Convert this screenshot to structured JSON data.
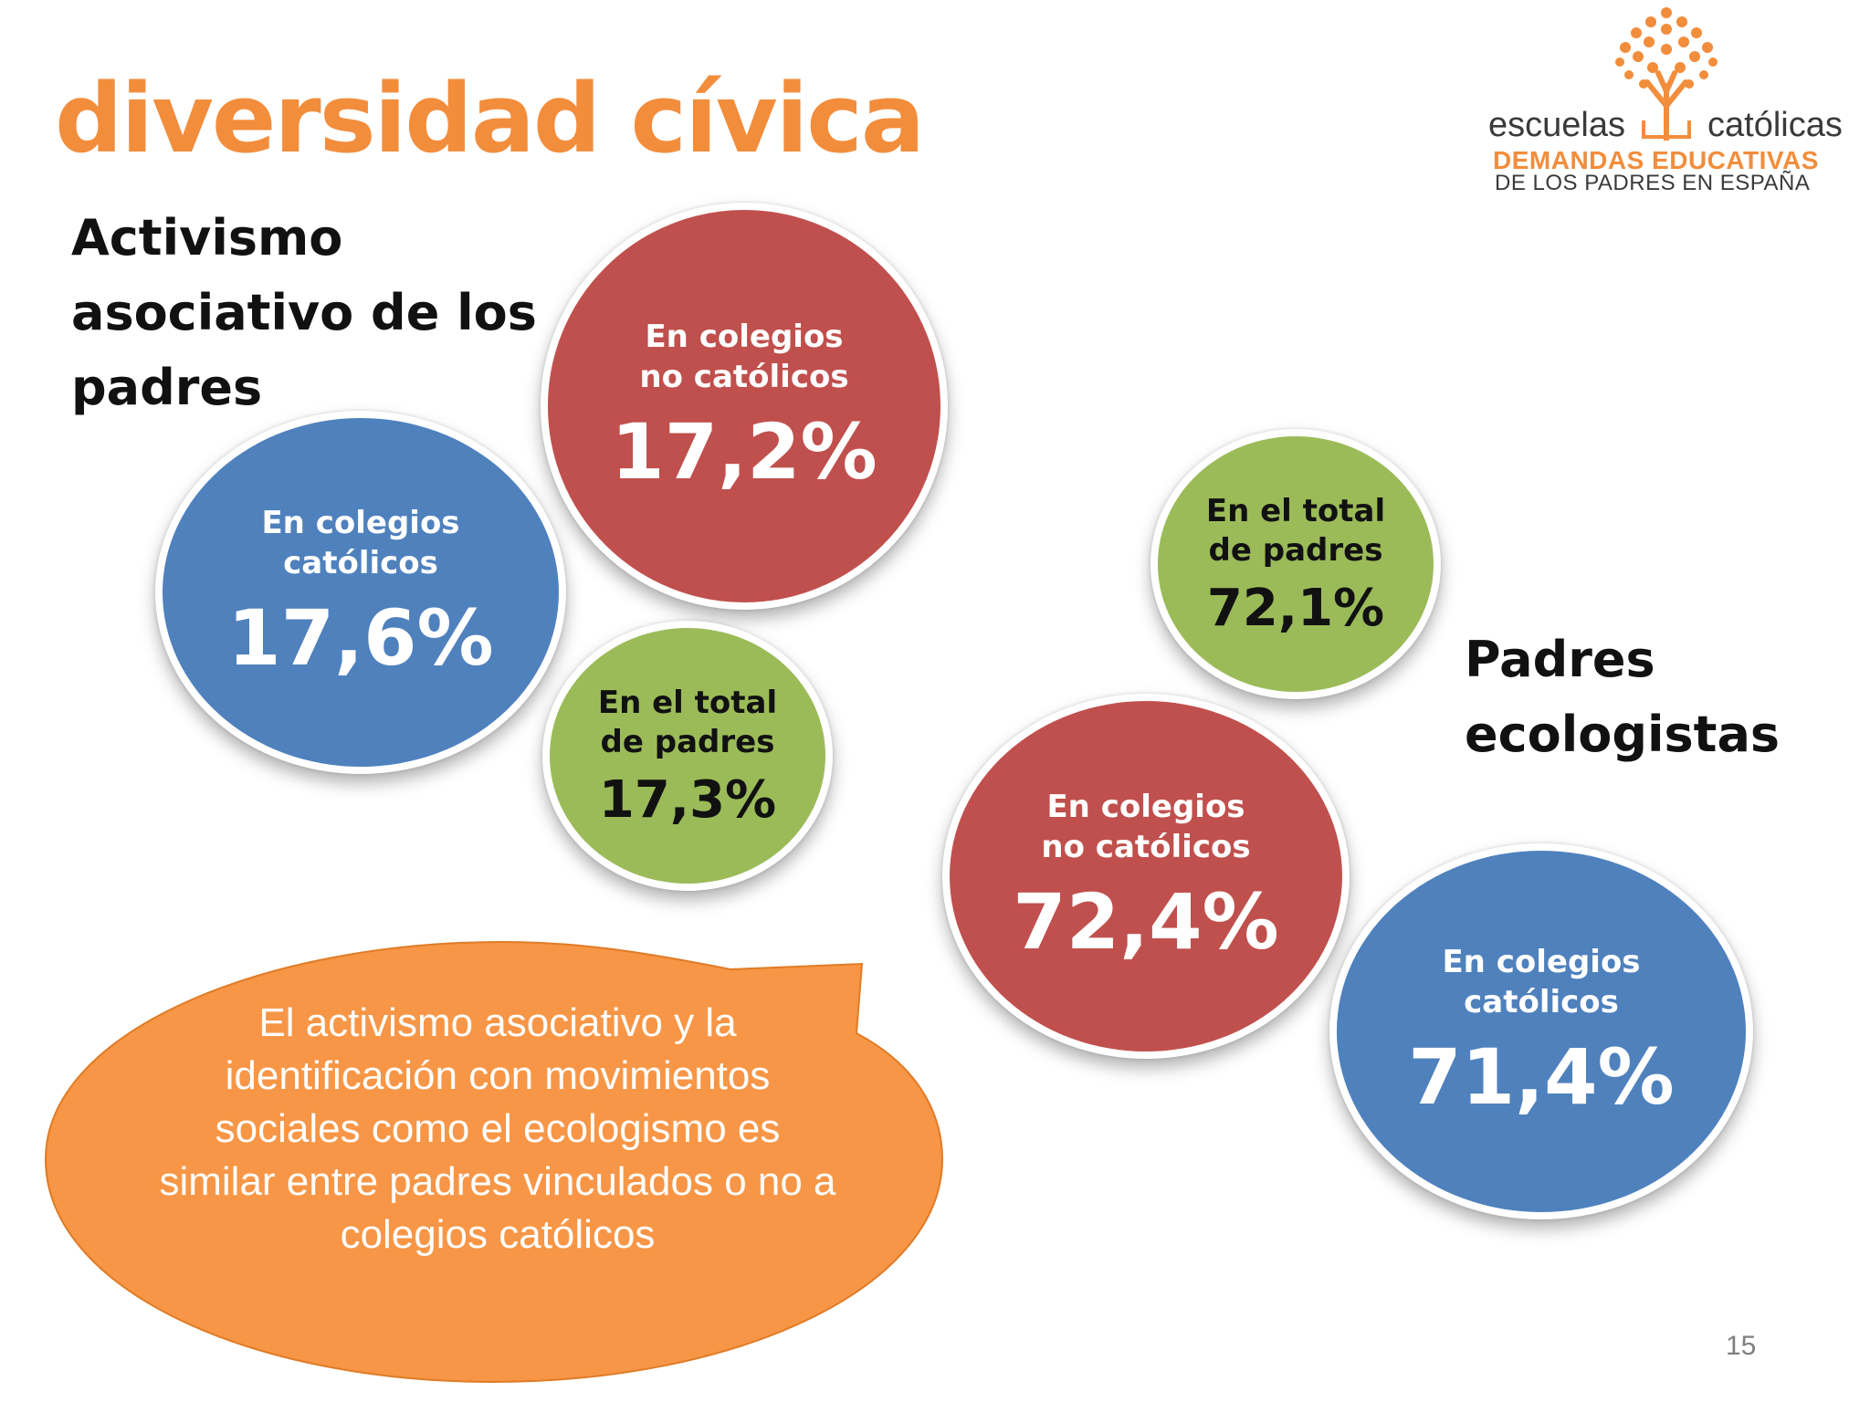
{
  "slide": {
    "title": "diversidad cívica",
    "page_number": "15"
  },
  "logo": {
    "word_left": "escuelas",
    "word_right": "católicas",
    "line1": "DEMANDAS EDUCATIVAS",
    "line2": "DE LOS PADRES EN ESPAÑA",
    "colors": {
      "orange": "#f28d3c",
      "dark": "#3a3a3a"
    }
  },
  "activismo": {
    "heading": "Activismo asociativo de los padres",
    "no_catolicos": {
      "label": "En colegios no católicos",
      "value": "17,2%"
    },
    "catolicos": {
      "label": "En colegios católicos",
      "value": "17,6%"
    },
    "total": {
      "label": "En el total de padres",
      "value": "17,3%"
    }
  },
  "ecologistas": {
    "heading": "Padres ecologistas",
    "total": {
      "label": "En el total de padres",
      "value": "72,1%"
    },
    "no_catolicos": {
      "label": "En colegios no católicos",
      "value": "72,4%"
    },
    "catolicos": {
      "label": "En colegios católicos",
      "value": "71,4%"
    }
  },
  "callout": {
    "text": "El activismo asociativo y la identificación con movimientos sociales como el ecologismo es similar entre padres vinculados o no a colegios católicos"
  },
  "colors": {
    "title_orange": "#f28d3c",
    "bubble_red": "#c0504d",
    "bubble_blue": "#4f81bd",
    "bubble_green": "#9bbb59",
    "callout_orange": "#f79646"
  }
}
